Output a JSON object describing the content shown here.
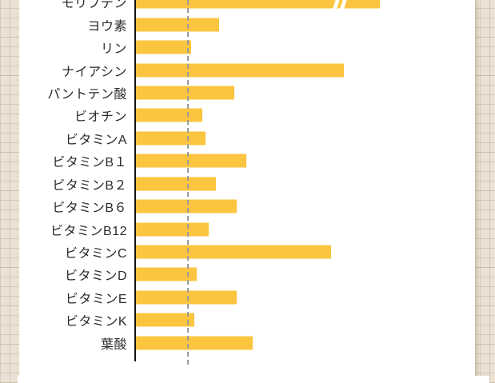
{
  "page": {
    "background_color": "#EBE1D4",
    "card_color": "#FFFFFF",
    "label_color": "#2B2B2B"
  },
  "chart_data": {
    "type": "bar",
    "orientation": "horizontal",
    "title": "",
    "xlabel": "",
    "ylabel": "",
    "legend": null,
    "grid": false,
    "categories": [
      "モリブデン",
      "ヨウ素",
      "リン",
      "ナイアシン",
      "パントテン酸",
      "ビオチン",
      "ビタミンA",
      "ビタミンB１",
      "ビタミンB２",
      "ビタミンB６",
      "ビタミンB12",
      "ビタミンC",
      "ビタミンD",
      "ビタミンE",
      "ビタミンK",
      "葉酸"
    ],
    "values_percent_of_reference": [
      462,
      157,
      104,
      394,
      186,
      126,
      132,
      209,
      151,
      191,
      138,
      370,
      115,
      191,
      111,
      221
    ],
    "reference_line_value": 100,
    "reference_line_style": "dashed",
    "broken_bar_category": "モリブデン",
    "broken_bar_note": "topmost bar carries an axis-break mark, true value exceeds plotted length; top category label is partially cropped by the screenshot edge",
    "bar_color": "#FBC53F",
    "axis_color": "#151515",
    "reference_line_color": "#9B9B9B"
  }
}
